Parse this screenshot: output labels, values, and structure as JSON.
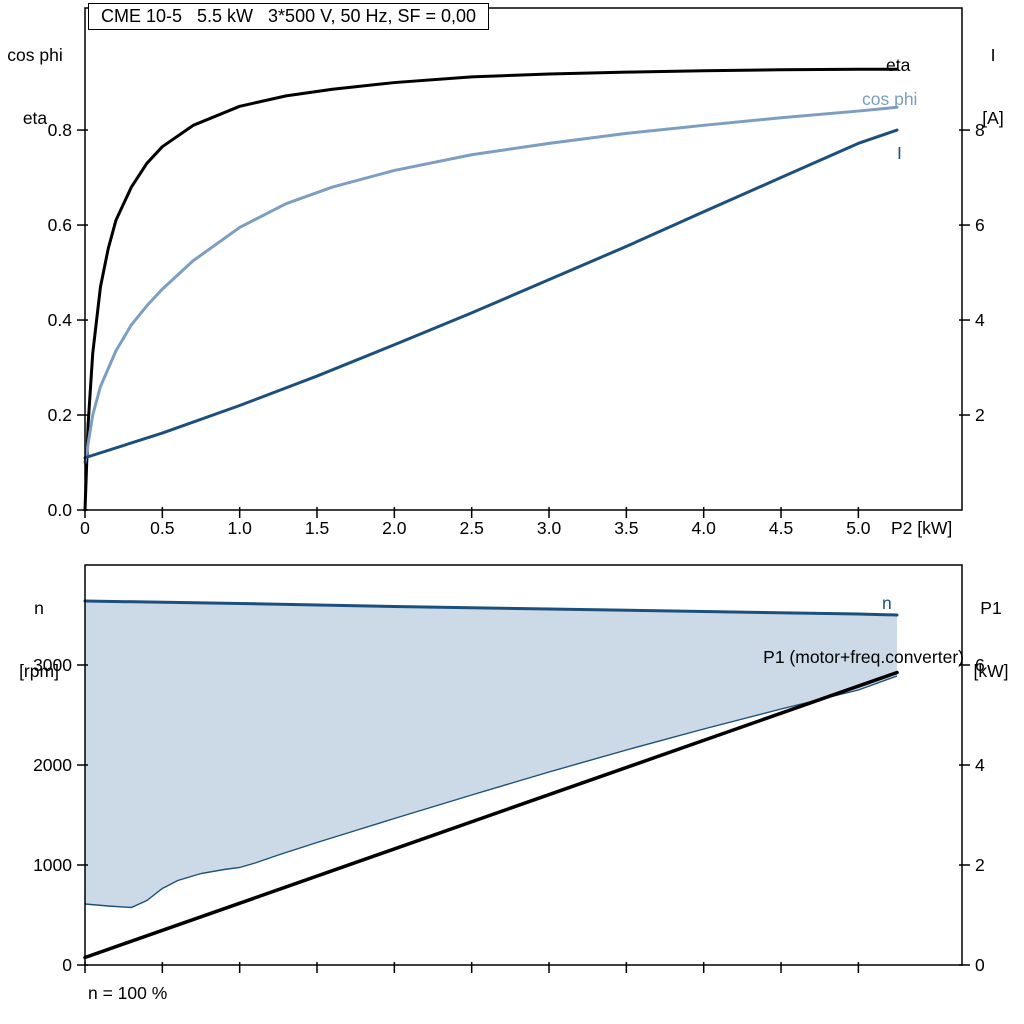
{
  "colors": {
    "black": "#000000",
    "dark_blue": "#1d4f7c",
    "light_blue": "#7d9ec0",
    "band_fill": "#ccd9e6"
  },
  "top": {
    "title": "CME 10-5   5.5 kW   3*500 V, 50 Hz, SF = 0,00",
    "axis_left_1": "cos phi",
    "axis_left_2": "eta",
    "axis_right_1": "I",
    "axis_right_2": "[A]",
    "x_label": "P2 [kW]",
    "label_eta": "eta",
    "label_cos_phi": "cos phi",
    "label_current": "I"
  },
  "bottom": {
    "axis_left_1": "n",
    "axis_left_2": "[rpm]",
    "axis_right_1": "P1",
    "axis_right_2": "[kW]",
    "label_n": "n",
    "label_p1": "P1 (motor+freq.converter)",
    "footnote": "n = 100 %"
  },
  "chart_data": [
    {
      "type": "line",
      "title": "CME 10-5   5.5 kW   3*500 V, 50 Hz, SF = 0,00",
      "xlabel": "P2 [kW]",
      "ylabel_left": "cos phi / eta",
      "ylabel_right": "I [A]",
      "xlim": [
        0,
        5.67
      ],
      "ylim_left": [
        0,
        1.057
      ],
      "ylim_right": [
        0,
        10.57
      ],
      "grid": false,
      "x_ticks": [
        0,
        0.5,
        1,
        1.5,
        2,
        2.5,
        3,
        3.5,
        4,
        4.5,
        5
      ],
      "x_tick_labels": [
        "0",
        "0.5",
        "1.0",
        "1.5",
        "2.0",
        "2.5",
        "3.0",
        "3.5",
        "4.0",
        "4.5",
        "5.0"
      ],
      "y_ticks_left": [
        0,
        0.2,
        0.4,
        0.6,
        0.8
      ],
      "y_tick_labels_left": [
        "0.0",
        "0.2",
        "0.4",
        "0.6",
        "0.8"
      ],
      "y_ticks_right": [
        2,
        4,
        6,
        8
      ],
      "y_tick_labels_right": [
        "2",
        "4",
        "6",
        "8"
      ],
      "series": [
        {
          "name": "eta",
          "axis": "left",
          "color": "#000000",
          "width": 3,
          "x": [
            0,
            0.02,
            0.05,
            0.1,
            0.15,
            0.2,
            0.3,
            0.4,
            0.5,
            0.7,
            1.0,
            1.3,
            1.6,
            2.0,
            2.5,
            3.0,
            3.5,
            4.0,
            4.5,
            5.0,
            5.25
          ],
          "y": [
            0,
            0.18,
            0.33,
            0.47,
            0.55,
            0.61,
            0.68,
            0.73,
            0.765,
            0.81,
            0.85,
            0.872,
            0.886,
            0.9,
            0.912,
            0.918,
            0.922,
            0.925,
            0.927,
            0.928,
            0.928
          ]
        },
        {
          "name": "cos phi",
          "axis": "left",
          "color": "#7d9ec0",
          "width": 3,
          "x": [
            0,
            0.05,
            0.1,
            0.2,
            0.3,
            0.4,
            0.5,
            0.7,
            1.0,
            1.3,
            1.6,
            2.0,
            2.5,
            3.0,
            3.5,
            4.0,
            4.5,
            5.0,
            5.25
          ],
          "y": [
            0.1,
            0.2,
            0.26,
            0.335,
            0.39,
            0.43,
            0.465,
            0.525,
            0.595,
            0.645,
            0.68,
            0.715,
            0.748,
            0.772,
            0.793,
            0.81,
            0.826,
            0.84,
            0.848
          ]
        },
        {
          "name": "I",
          "axis": "right",
          "color": "#1d4f7c",
          "width": 3,
          "x": [
            0,
            0.5,
            1.0,
            1.5,
            2.0,
            2.5,
            3.0,
            3.5,
            4.0,
            4.5,
            5.0,
            5.25
          ],
          "y": [
            1.1,
            1.62,
            2.2,
            2.82,
            3.48,
            4.15,
            4.85,
            5.55,
            6.28,
            7.0,
            7.72,
            8.0
          ]
        }
      ]
    },
    {
      "type": "line",
      "title": "",
      "xlabel": "",
      "ylabel_left": "n [rpm]",
      "ylabel_right": "P1 [kW]",
      "annotation": "n = 100 %",
      "xlim": [
        0,
        5.67
      ],
      "ylim_left": [
        0,
        4000
      ],
      "ylim_right": [
        0,
        8
      ],
      "grid": false,
      "x_ticks": [
        0,
        0.5,
        1,
        1.5,
        2,
        2.5,
        3,
        3.5,
        4,
        4.5,
        5
      ],
      "x_tick_labels": [
        "",
        "",
        "",
        "",
        "",
        "",
        "",
        "",
        "",
        "",
        ""
      ],
      "y_ticks_left": [
        0,
        1000,
        2000,
        3000
      ],
      "y_tick_labels_left": [
        "0",
        "1000",
        "2000",
        "3000"
      ],
      "y_ticks_right": [
        0,
        2,
        4,
        6
      ],
      "y_tick_labels_right": [
        "0",
        "2",
        "4",
        "6"
      ],
      "band": {
        "name": "speed-operating-range",
        "fill": "#ccd9e6",
        "edge_color": "#1d4f7c",
        "upper_series": "n",
        "lower_x": [
          0,
          0.15,
          0.3,
          0.4,
          0.5,
          0.6,
          0.75,
          0.9,
          1.0,
          1.1,
          1.25,
          1.5,
          1.75,
          2.0,
          2.5,
          3.0,
          3.5,
          4.0,
          4.5,
          5.0,
          5.25
        ],
        "lower_y": [
          610,
          590,
          575,
          645,
          765,
          845,
          915,
          955,
          975,
          1020,
          1100,
          1225,
          1345,
          1465,
          1700,
          1930,
          2150,
          2360,
          2560,
          2750,
          2890
        ]
      },
      "series": [
        {
          "name": "P1 (motor+freq.converter)",
          "axis": "right",
          "color": "#000000",
          "width": 3.5,
          "x": [
            0,
            5.25
          ],
          "y": [
            0.15,
            5.85
          ]
        },
        {
          "name": "n",
          "axis": "left",
          "color": "#1d4f7c",
          "width": 3,
          "x": [
            0,
            1,
            2,
            3,
            4,
            5,
            5.25
          ],
          "y": [
            3640,
            3615,
            3585,
            3560,
            3535,
            3510,
            3500
          ]
        }
      ]
    }
  ]
}
